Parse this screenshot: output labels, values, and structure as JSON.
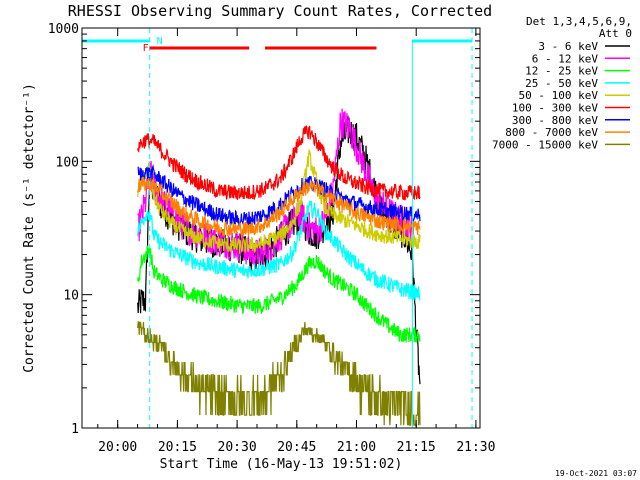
{
  "chart_data": {
    "type": "line",
    "title": "RHESSI Observing Summary Count Rates, Corrected",
    "xlabel": "Start Time (16-May-13 19:51:02)",
    "ylabel": "Corrected Count Rate (s⁻¹ detector⁻¹)",
    "x_unit": "minutes since 19:51:02 (axis tick labels shown as HH:MM)",
    "xlim": [
      0,
      100
    ],
    "ylim": [
      1,
      1000
    ],
    "yscale": "log",
    "x_ticks": [
      {
        "x": 8.97,
        "label": "20:00"
      },
      {
        "x": 23.97,
        "label": "20:15"
      },
      {
        "x": 38.97,
        "label": "20:30"
      },
      {
        "x": 53.97,
        "label": "20:45"
      },
      {
        "x": 68.97,
        "label": "21:00"
      },
      {
        "x": 83.97,
        "label": "21:15"
      },
      {
        "x": 98.97,
        "label": "21:30"
      }
    ],
    "y_ticks": [
      {
        "y": 1,
        "label": "1"
      },
      {
        "y": 10,
        "label": "10"
      },
      {
        "y": 100,
        "label": "100"
      },
      {
        "y": 1000,
        "label": "1000"
      }
    ],
    "legend": {
      "placement": "right",
      "header": [
        "Det 1,3,4,5,6,9,",
        "Att 0"
      ],
      "entries": [
        {
          "label": "3 - 6 keV",
          "color": "#000000"
        },
        {
          "label": "6 - 12 keV",
          "color": "#ff00ff"
        },
        {
          "label": "12 - 25 keV",
          "color": "#00ff00"
        },
        {
          "label": "25 - 50 keV",
          "color": "#00ffff"
        },
        {
          "label": "50 - 100 keV",
          "color": "#cccc00"
        },
        {
          "label": "100 - 300 keV",
          "color": "#ff0000"
        },
        {
          "label": "300 - 800 keV",
          "color": "#0000ff"
        },
        {
          "label": "800 - 7000 keV",
          "color": "#ff8000"
        },
        {
          "label": "7000 - 15000 keV",
          "color": "#808000"
        }
      ]
    },
    "annotations": {
      "flag_labels": [
        {
          "text": "F",
          "x": 16,
          "color": "#ff0000"
        },
        {
          "text": "N",
          "x": 19.5,
          "color": "#00ffff"
        }
      ],
      "flare_bars": [
        [
          17,
          42
        ],
        [
          46,
          74
        ]
      ],
      "night_bars": [
        [
          0,
          17
        ],
        [
          83,
          98
        ]
      ],
      "cyan_dashed_verticals": [
        17,
        98
      ],
      "cyan_solid_verticals": [
        83
      ],
      "timestamp": "19-Oct-2021 03:07"
    },
    "series": [
      {
        "name": "3 - 6 keV",
        "color": "#000000",
        "x_start": 14,
        "x_end": 85,
        "points": [
          [
            14,
            8
          ],
          [
            15,
            9
          ],
          [
            16,
            9
          ],
          [
            17,
            80
          ],
          [
            18,
            60
          ],
          [
            20,
            46
          ],
          [
            23,
            36
          ],
          [
            26,
            30
          ],
          [
            30,
            26
          ],
          [
            35,
            24
          ],
          [
            40,
            22
          ],
          [
            43,
            19
          ],
          [
            46,
            20
          ],
          [
            49,
            25
          ],
          [
            52,
            32
          ],
          [
            55,
            38
          ],
          [
            57,
            30
          ],
          [
            59,
            28
          ],
          [
            61,
            33
          ],
          [
            63,
            40
          ],
          [
            65,
            140
          ],
          [
            67,
            170
          ],
          [
            69,
            150
          ],
          [
            71,
            110
          ],
          [
            73,
            70
          ],
          [
            75,
            45
          ],
          [
            77,
            36
          ],
          [
            79,
            32
          ],
          [
            81,
            28
          ],
          [
            83,
            20
          ],
          [
            84,
            5
          ],
          [
            85,
            2
          ]
        ]
      },
      {
        "name": "6 - 12 keV",
        "color": "#ff00ff",
        "x_start": 14,
        "x_end": 83,
        "points": [
          [
            14,
            30
          ],
          [
            16,
            50
          ],
          [
            17,
            85
          ],
          [
            18,
            65
          ],
          [
            20,
            50
          ],
          [
            23,
            38
          ],
          [
            26,
            32
          ],
          [
            30,
            28
          ],
          [
            35,
            25
          ],
          [
            40,
            23
          ],
          [
            43,
            20
          ],
          [
            46,
            21
          ],
          [
            49,
            26
          ],
          [
            52,
            33
          ],
          [
            55,
            40
          ],
          [
            57,
            32
          ],
          [
            59,
            30
          ],
          [
            61,
            36
          ],
          [
            63,
            60
          ],
          [
            65,
            200
          ],
          [
            67,
            180
          ],
          [
            69,
            130
          ],
          [
            71,
            90
          ],
          [
            73,
            60
          ],
          [
            75,
            48
          ],
          [
            77,
            42
          ],
          [
            79,
            38
          ],
          [
            81,
            35
          ],
          [
            83,
            32
          ]
        ]
      },
      {
        "name": "12 - 25 keV",
        "color": "#00ff00",
        "x_start": 14,
        "x_end": 85,
        "points": [
          [
            14,
            12
          ],
          [
            15,
            18
          ],
          [
            16,
            20
          ],
          [
            17,
            22
          ],
          [
            18,
            15
          ],
          [
            20,
            13
          ],
          [
            23,
            11.5
          ],
          [
            26,
            10.5
          ],
          [
            30,
            9.5
          ],
          [
            35,
            8.8
          ],
          [
            40,
            8.2
          ],
          [
            45,
            8.2
          ],
          [
            50,
            9.5
          ],
          [
            54,
            12
          ],
          [
            57,
            17
          ],
          [
            59,
            18
          ],
          [
            61,
            15
          ],
          [
            63,
            13
          ],
          [
            65,
            12
          ],
          [
            67,
            11
          ],
          [
            69,
            10
          ],
          [
            71,
            8.5
          ],
          [
            73,
            7.5
          ],
          [
            75,
            6.5
          ],
          [
            78,
            5.5
          ],
          [
            80,
            5
          ],
          [
            83,
            5
          ],
          [
            85,
            5
          ]
        ]
      },
      {
        "name": "25 - 50 keV",
        "color": "#00ffff",
        "x_start": 14,
        "x_end": 85,
        "points": [
          [
            14,
            30
          ],
          [
            15,
            35
          ],
          [
            16,
            40
          ],
          [
            17,
            42
          ],
          [
            18,
            28
          ],
          [
            20,
            24
          ],
          [
            23,
            21
          ],
          [
            26,
            19
          ],
          [
            30,
            17
          ],
          [
            35,
            16
          ],
          [
            40,
            15
          ],
          [
            45,
            15.5
          ],
          [
            50,
            17
          ],
          [
            53,
            21
          ],
          [
            55,
            30
          ],
          [
            57,
            45
          ],
          [
            59,
            42
          ],
          [
            61,
            30
          ],
          [
            63,
            26
          ],
          [
            65,
            22
          ],
          [
            68,
            18
          ],
          [
            71,
            15
          ],
          [
            74,
            13
          ],
          [
            77,
            12
          ],
          [
            80,
            11
          ],
          [
            83,
            10.5
          ],
          [
            85,
            10
          ]
        ]
      },
      {
        "name": "50 - 100 keV",
        "color": "#cccc00",
        "x_start": 14,
        "x_end": 85,
        "points": [
          [
            14,
            60
          ],
          [
            15,
            70
          ],
          [
            16,
            80
          ],
          [
            17,
            90
          ],
          [
            18,
            55
          ],
          [
            20,
            42
          ],
          [
            23,
            33
          ],
          [
            26,
            29
          ],
          [
            30,
            26
          ],
          [
            35,
            24
          ],
          [
            40,
            23
          ],
          [
            45,
            24
          ],
          [
            50,
            28
          ],
          [
            53,
            35
          ],
          [
            55,
            50
          ],
          [
            57,
            110
          ],
          [
            59,
            70
          ],
          [
            61,
            45
          ],
          [
            63,
            40
          ],
          [
            66,
            36
          ],
          [
            69,
            33
          ],
          [
            72,
            30
          ],
          [
            75,
            28
          ],
          [
            78,
            27
          ],
          [
            81,
            26
          ],
          [
            83,
            25
          ],
          [
            85,
            25
          ]
        ]
      },
      {
        "name": "100 - 300 keV",
        "color": "#ff0000",
        "x_start": 14,
        "x_end": 85,
        "points": [
          [
            14,
            130
          ],
          [
            16,
            145
          ],
          [
            18,
            140
          ],
          [
            20,
            120
          ],
          [
            23,
            95
          ],
          [
            26,
            80
          ],
          [
            30,
            68
          ],
          [
            34,
            60
          ],
          [
            38,
            58
          ],
          [
            42,
            58
          ],
          [
            46,
            62
          ],
          [
            50,
            75
          ],
          [
            53,
            110
          ],
          [
            55,
            150
          ],
          [
            57,
            170
          ],
          [
            59,
            140
          ],
          [
            61,
            110
          ],
          [
            63,
            90
          ],
          [
            66,
            75
          ],
          [
            69,
            68
          ],
          [
            72,
            63
          ],
          [
            75,
            60
          ],
          [
            78,
            59
          ],
          [
            81,
            58
          ],
          [
            83,
            58
          ],
          [
            85,
            58
          ]
        ]
      },
      {
        "name": "300 - 800 keV",
        "color": "#0000ff",
        "x_start": 14,
        "x_end": 85,
        "points": [
          [
            14,
            80
          ],
          [
            16,
            82
          ],
          [
            18,
            80
          ],
          [
            20,
            72
          ],
          [
            23,
            60
          ],
          [
            26,
            52
          ],
          [
            30,
            45
          ],
          [
            34,
            40
          ],
          [
            38,
            37
          ],
          [
            42,
            37
          ],
          [
            46,
            40
          ],
          [
            50,
            48
          ],
          [
            53,
            58
          ],
          [
            55,
            65
          ],
          [
            57,
            68
          ],
          [
            59,
            66
          ],
          [
            61,
            62
          ],
          [
            63,
            57
          ],
          [
            66,
            52
          ],
          [
            69,
            48
          ],
          [
            72,
            45
          ],
          [
            75,
            43
          ],
          [
            78,
            42
          ],
          [
            81,
            41
          ],
          [
            83,
            40
          ],
          [
            85,
            40
          ]
        ]
      },
      {
        "name": "800 - 7000 keV",
        "color": "#ff8000",
        "x_start": 14,
        "x_end": 85,
        "points": [
          [
            14,
            65
          ],
          [
            16,
            68
          ],
          [
            18,
            66
          ],
          [
            20,
            58
          ],
          [
            23,
            48
          ],
          [
            26,
            40
          ],
          [
            30,
            35
          ],
          [
            34,
            32
          ],
          [
            38,
            31
          ],
          [
            42,
            31
          ],
          [
            46,
            34
          ],
          [
            50,
            42
          ],
          [
            53,
            52
          ],
          [
            55,
            60
          ],
          [
            57,
            65
          ],
          [
            59,
            62
          ],
          [
            61,
            57
          ],
          [
            63,
            52
          ],
          [
            66,
            46
          ],
          [
            69,
            41
          ],
          [
            72,
            38
          ],
          [
            75,
            35
          ],
          [
            78,
            34
          ],
          [
            81,
            33
          ],
          [
            83,
            32
          ],
          [
            85,
            32
          ]
        ]
      },
      {
        "name": "7000 - 15000 keV",
        "color": "#808000",
        "x_start": 14,
        "x_end": 85,
        "points": [
          [
            14,
            6
          ],
          [
            16,
            5
          ],
          [
            18,
            4.5
          ],
          [
            20,
            4
          ],
          [
            23,
            3
          ],
          [
            26,
            2.5
          ],
          [
            30,
            2
          ],
          [
            35,
            1.6
          ],
          [
            40,
            1.6
          ],
          [
            45,
            1.8
          ],
          [
            50,
            2.5
          ],
          [
            53,
            4
          ],
          [
            56,
            5.5
          ],
          [
            59,
            5
          ],
          [
            62,
            4
          ],
          [
            65,
            3
          ],
          [
            68,
            2.5
          ],
          [
            71,
            2
          ],
          [
            75,
            1.6
          ],
          [
            80,
            1.4
          ],
          [
            85,
            1.2
          ]
        ]
      }
    ]
  }
}
